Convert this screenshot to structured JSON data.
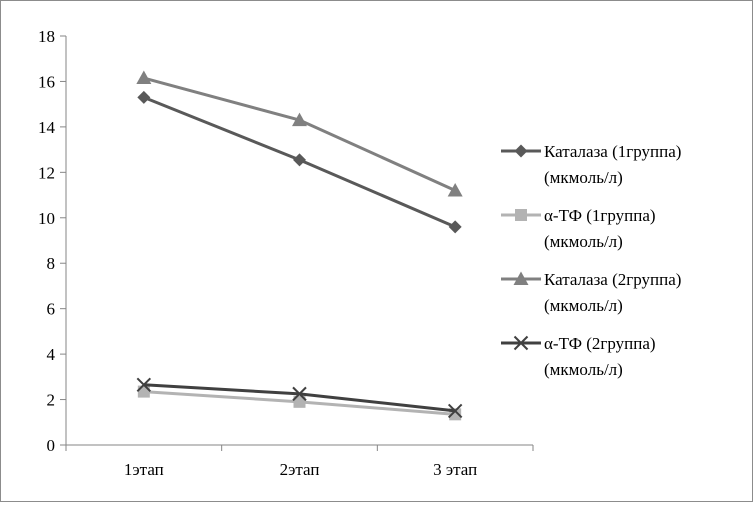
{
  "chart_data": {
    "type": "line",
    "categories": [
      "1этап",
      "2этап",
      "3 этап"
    ],
    "ylim": [
      0,
      18
    ],
    "yticks": [
      0,
      2,
      4,
      6,
      8,
      10,
      12,
      14,
      16,
      18
    ],
    "grid": false,
    "legend_position": "right",
    "series": [
      {
        "name_lines": [
          "Каталаза  (1группа)",
          "(мкмоль/л)"
        ],
        "values": [
          15.3,
          12.55,
          9.6
        ],
        "color": "#595959",
        "marker": "diamond"
      },
      {
        "name_lines": [
          "α-ТФ (1группа)",
          "(мкмоль/л)"
        ],
        "values": [
          2.35,
          1.9,
          1.35
        ],
        "color": "#b3b3b3",
        "marker": "square"
      },
      {
        "name_lines": [
          "Каталаза (2группа)",
          "(мкмоль/л)"
        ],
        "values": [
          16.15,
          14.3,
          11.2
        ],
        "color": "#808080",
        "marker": "triangle"
      },
      {
        "name_lines": [
          "α-ТФ (2группа)",
          "(мкмоль/л)"
        ],
        "values": [
          2.65,
          2.25,
          1.5
        ],
        "color": "#404040",
        "marker": "x"
      }
    ]
  }
}
